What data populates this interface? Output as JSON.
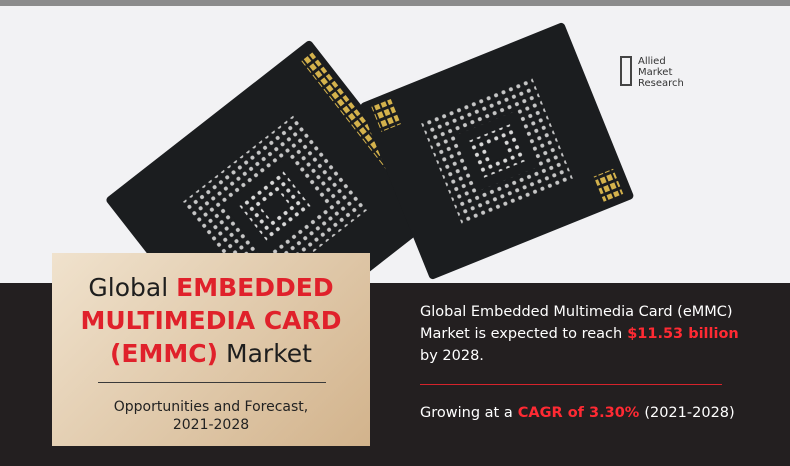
{
  "logo": {
    "lines": [
      "Allied",
      "Market",
      "Research"
    ]
  },
  "title": {
    "lines": [
      [
        {
          "text": "Global"
        },
        {
          "text": "EMBEDDED",
          "red": true
        }
      ],
      [
        {
          "text": "MULTIMEDIA CARD",
          "red": true
        }
      ],
      [
        {
          "text": "(EMMC)",
          "red": true
        },
        {
          "text": "Market"
        }
      ]
    ]
  },
  "subtitle": {
    "lines": [
      "Opportunities and Forecast,",
      "2021-2028"
    ]
  },
  "stats": [
    {
      "lines": [
        [
          {
            "text": "Global Embedded Multimedia Card (eMMC)"
          }
        ],
        [
          {
            "text": "Market is expected to reach"
          },
          {
            "text": "$11.53 billion",
            "red": true
          }
        ],
        [
          {
            "text": "by 2028."
          }
        ]
      ]
    },
    {
      "lines": [
        [
          {
            "text": "Growing at a"
          },
          {
            "text": "CAGR of 3.30%",
            "red": true
          },
          {
            "text": "(2021-2028)"
          }
        ]
      ]
    }
  ]
}
